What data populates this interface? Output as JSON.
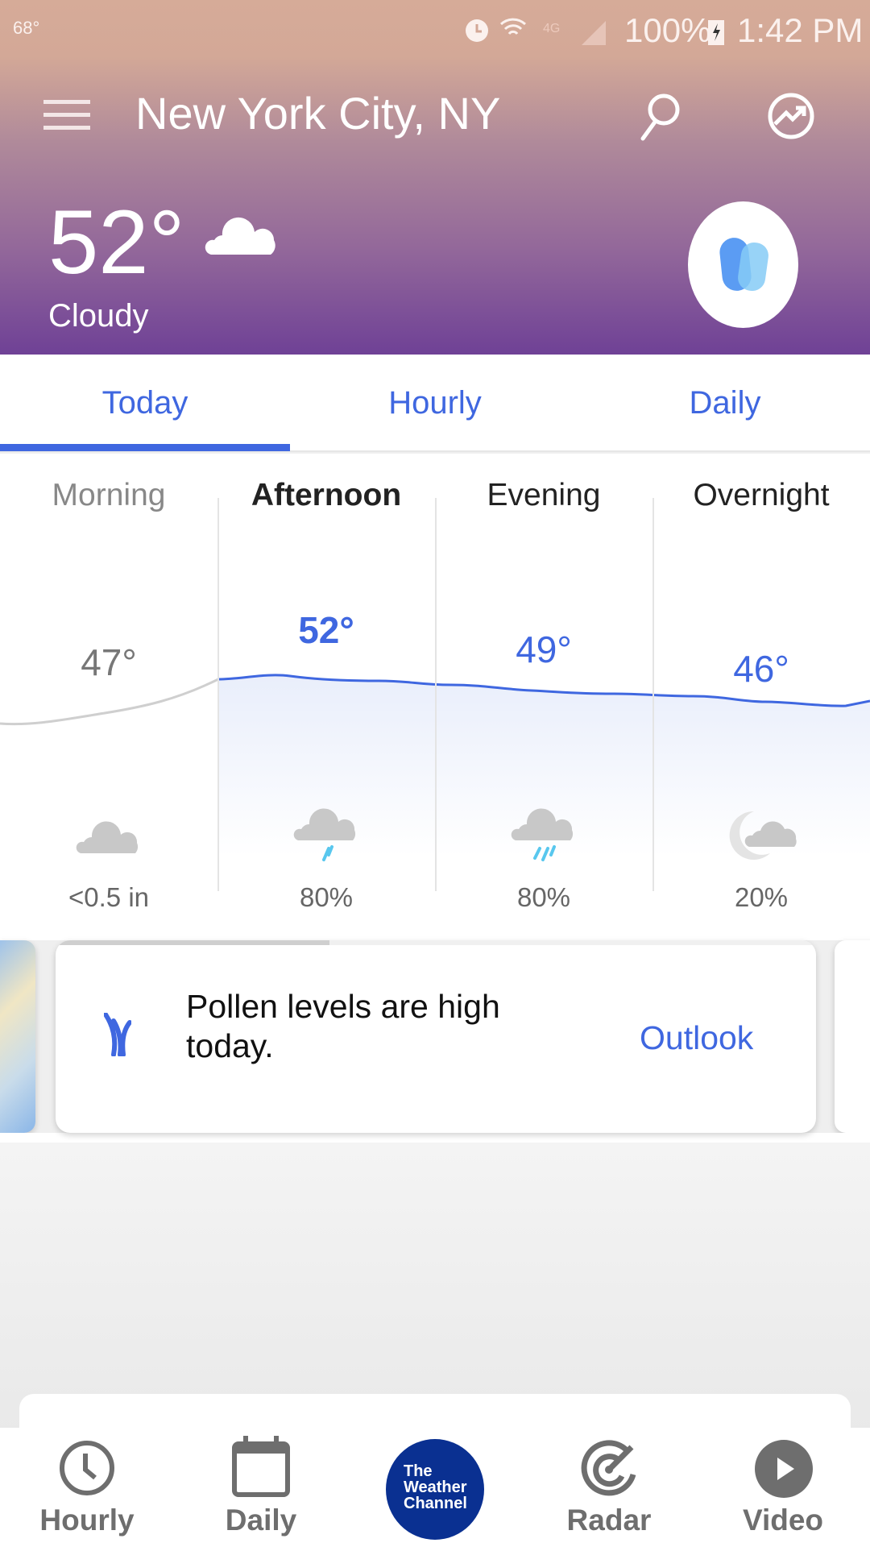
{
  "status_bar": {
    "left_temp": "68°",
    "battery": "100%",
    "time": "1:42 PM",
    "network": "4G"
  },
  "header": {
    "location": "New York City, NY",
    "temperature": "52°",
    "condition": "Cloudy",
    "icons": [
      "menu-icon",
      "search-icon",
      "trending-icon",
      "cloud-icon",
      "feature-button-icon"
    ]
  },
  "tabs": [
    {
      "label": "Today",
      "active": true
    },
    {
      "label": "Hourly"
    },
    {
      "label": "Daily"
    }
  ],
  "periods": [
    {
      "name": "Morning",
      "temp": "47°",
      "icon": "cloud-icon",
      "detail": "<0.5 in",
      "past": true
    },
    {
      "name": "Afternoon",
      "temp": "52°",
      "icon": "rain-icon",
      "detail": "80%",
      "current": true
    },
    {
      "name": "Evening",
      "temp": "49°",
      "icon": "rain-icon",
      "detail": "80%"
    },
    {
      "name": "Overnight",
      "temp": "46°",
      "icon": "partly-cloudy-night-icon",
      "detail": "20%"
    }
  ],
  "insight": {
    "text": "Pollen levels are high today.",
    "action": "Outlook",
    "icon": "pollen-grass-icon",
    "progress": 0.36
  },
  "bottom_nav": [
    {
      "label": "Hourly",
      "icon": "clock-icon"
    },
    {
      "label": "Daily",
      "icon": "calendar-icon"
    },
    {
      "label": "The Weather Channel",
      "icon": "twc-logo"
    },
    {
      "label": "Radar",
      "icon": "radar-icon"
    },
    {
      "label": "Video",
      "icon": "play-icon"
    }
  ],
  "colors": {
    "accent": "#3f67e0",
    "twc_blue": "#0a3091",
    "nav_gray": "#6e6e6e"
  }
}
